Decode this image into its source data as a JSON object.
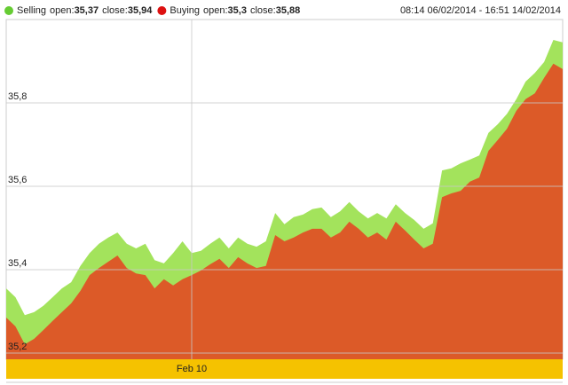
{
  "chart_data": {
    "type": "area",
    "date_range": "08:14 06/02/2014 - 16:51 14/02/2014",
    "categories": [
      null,
      null,
      null,
      null,
      null,
      null,
      null,
      null,
      null,
      null,
      null,
      null,
      null,
      null,
      null,
      null,
      null,
      null,
      null,
      null,
      "Feb 10",
      null,
      null,
      null,
      null,
      null,
      null,
      null,
      null,
      null,
      null,
      null,
      null,
      null,
      null,
      null,
      null,
      null,
      null,
      null,
      null,
      null,
      null,
      null,
      null,
      null,
      null,
      null,
      null,
      null,
      null,
      null,
      null,
      null,
      null,
      null,
      null,
      null,
      null,
      null,
      null
    ],
    "series": [
      {
        "name": "Selling",
        "open_text": "open:",
        "open": "35,37",
        "close_text": "close:",
        "close": "35,94",
        "color": "#a3e35c",
        "legend_color": "#66cc33",
        "values": [
          35.355,
          35.334,
          35.291,
          35.298,
          35.313,
          35.334,
          35.355,
          35.37,
          35.409,
          35.44,
          35.462,
          35.477,
          35.489,
          35.462,
          35.451,
          35.462,
          35.423,
          35.415,
          35.44,
          35.468,
          35.44,
          35.445,
          35.462,
          35.477,
          35.451,
          35.477,
          35.462,
          35.455,
          35.468,
          35.536,
          35.509,
          35.526,
          35.532,
          35.545,
          35.549,
          35.526,
          35.54,
          35.562,
          35.54,
          35.523,
          35.536,
          35.523,
          35.557,
          35.536,
          35.519,
          35.498,
          35.511,
          35.638,
          35.643,
          35.655,
          35.664,
          35.674,
          35.728,
          35.749,
          35.774,
          35.809,
          35.851,
          35.872,
          35.898,
          35.951,
          35.945
        ]
      },
      {
        "name": "Buying",
        "open_text": "open:",
        "open": "35,3",
        "close_text": "close:",
        "close": "35,88",
        "color": "#dc5a28",
        "legend_color": "#dd1111",
        "values": [
          35.285,
          35.264,
          35.221,
          35.234,
          35.255,
          35.277,
          35.298,
          35.319,
          35.349,
          35.387,
          35.404,
          35.419,
          35.434,
          35.404,
          35.391,
          35.387,
          35.355,
          35.377,
          35.362,
          35.377,
          35.387,
          35.398,
          35.413,
          35.426,
          35.404,
          35.43,
          35.415,
          35.404,
          35.409,
          35.483,
          35.468,
          35.477,
          35.489,
          35.498,
          35.498,
          35.477,
          35.489,
          35.515,
          35.498,
          35.477,
          35.489,
          35.472,
          35.515,
          35.494,
          35.472,
          35.451,
          35.462,
          35.574,
          35.583,
          35.589,
          35.611,
          35.621,
          35.685,
          35.711,
          35.738,
          35.781,
          35.809,
          35.823,
          35.86,
          35.894,
          35.881
        ]
      }
    ],
    "ylim": [
      35.185,
      36.0
    ],
    "yticks": [
      {
        "value": 35.2,
        "label": "35,2"
      },
      {
        "value": 35.4,
        "label": "35,4"
      },
      {
        "value": 35.6,
        "label": "35,6"
      },
      {
        "value": 35.8,
        "label": "35,8"
      }
    ],
    "grid": true,
    "axis_band_color": "#f5c200"
  }
}
